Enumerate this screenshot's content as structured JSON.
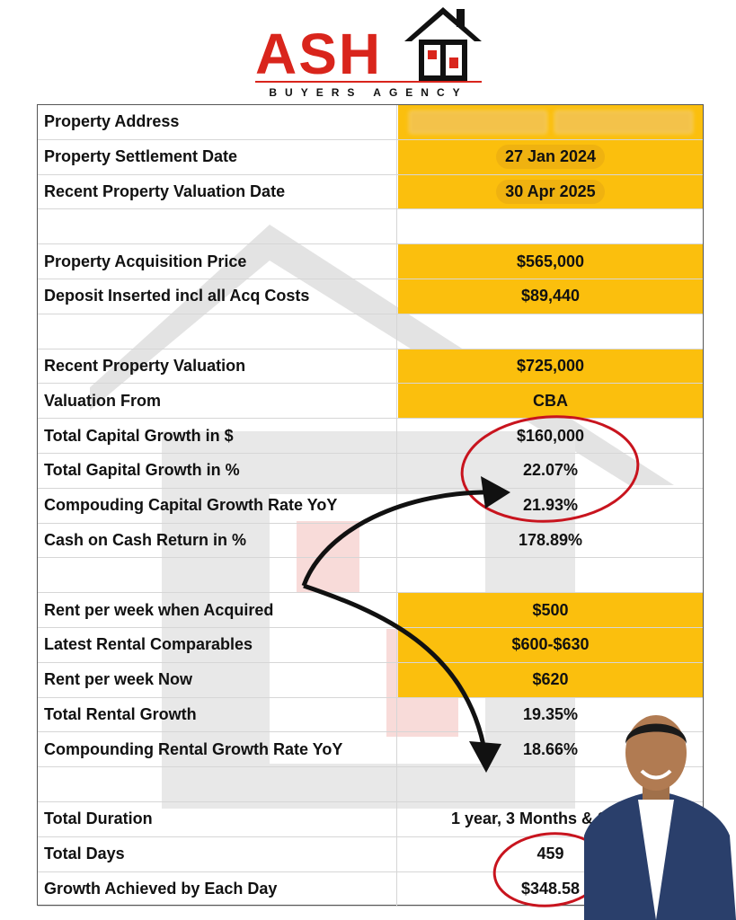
{
  "logo": {
    "brand": "ASH",
    "tagline": "BUYERS AGENCY"
  },
  "rows": [
    {
      "label": "Property Address",
      "value": "",
      "style": "blurred"
    },
    {
      "label": "Property Settlement Date",
      "value": "27 Jan 2024",
      "style": "pill"
    },
    {
      "label": "Recent Property Valuation Date",
      "value": "30 Apr 2025",
      "style": "pill"
    },
    {
      "label": "",
      "value": "",
      "style": "blank"
    },
    {
      "label": "Property Acquisition Price",
      "value": "$565,000",
      "style": "yellow"
    },
    {
      "label": "Deposit Inserted incl all Acq Costs",
      "value": "$89,440",
      "style": "yellow"
    },
    {
      "label": "",
      "value": "",
      "style": "blank"
    },
    {
      "label": "Recent Property Valuation",
      "value": "$725,000",
      "style": "yellow"
    },
    {
      "label": "Valuation From",
      "value": "CBA",
      "style": "yellow"
    },
    {
      "label": "Total Capital Growth in $",
      "value": "$160,000",
      "style": "plain"
    },
    {
      "label": "Total Gapital Growth in %",
      "value": "22.07%",
      "style": "plain"
    },
    {
      "label": "Compouding Capital Growth Rate YoY",
      "value": "21.93%",
      "style": "plain"
    },
    {
      "label": "Cash on Cash Return in %",
      "value": "178.89%",
      "style": "plain"
    },
    {
      "label": "",
      "value": "",
      "style": "blank"
    },
    {
      "label": "Rent per week when Acquired",
      "value": "$500",
      "style": "yellow"
    },
    {
      "label": "Latest Rental Comparables",
      "value": "$600-$630",
      "style": "yellow"
    },
    {
      "label": "Rent per week Now",
      "value": "$620",
      "style": "yellow"
    },
    {
      "label": "Total Rental Growth",
      "value": "19.35%",
      "style": "plain"
    },
    {
      "label": "Compounding Rental Growth Rate YoY",
      "value": "18.66%",
      "style": "plain"
    },
    {
      "label": "",
      "value": "",
      "style": "blank"
    },
    {
      "label": "Total Duration",
      "value": "1 year, 3 Months & 3 Days",
      "style": "plain"
    },
    {
      "label": "Total Days",
      "value": "459",
      "style": "plain"
    },
    {
      "label": "Growth Achieved by Each Day",
      "value": "$348.58",
      "style": "plain"
    }
  ],
  "colors": {
    "highlight": "#fbbf0d",
    "brand_red": "#d9251c",
    "annotation_red": "#c8141e"
  },
  "icons": [
    "house-logo-icon",
    "curved-arrow-icon",
    "circle-annotation-icon"
  ]
}
